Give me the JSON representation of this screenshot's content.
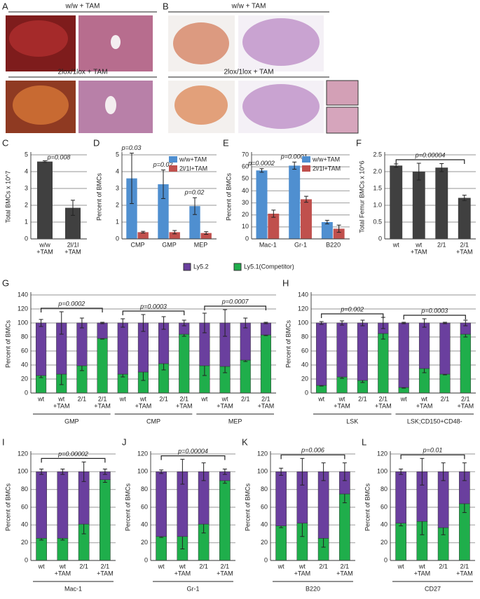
{
  "image_panels": [
    {
      "label": "A",
      "captions": [
        "w/w + TAM",
        "2lox/1lox + TAM"
      ]
    },
    {
      "label": "B",
      "captions": [
        "w/w + TAM",
        "2lox/1lox + TAM"
      ]
    }
  ],
  "shared_legend": [
    {
      "name": "Ly5.2",
      "color": "#6a3f9e"
    },
    {
      "name": "Ly5.1(Competitor)",
      "color": "#1fae4b"
    }
  ],
  "chart_data": [
    {
      "type": "bar",
      "label": "C",
      "ylabel": "Total BMCs x 10^7",
      "categories": [
        [
          "w/w",
          "+TAM"
        ],
        [
          "2l/1l",
          "+TAM"
        ]
      ],
      "values": [
        4.6,
        1.85
      ],
      "errors": [
        0.05,
        0.45
      ],
      "color": "#404040",
      "ylim": [
        0,
        5
      ],
      "yticks": [
        0,
        1,
        2,
        3,
        4,
        5
      ],
      "grid": true,
      "annotation": "p=0.008"
    },
    {
      "type": "grouped_bar",
      "label": "D",
      "ylabel": "Percent of BMCs",
      "categories": [
        [
          "CMP"
        ],
        [
          "GMP"
        ],
        [
          "MEP"
        ]
      ],
      "series": [
        {
          "name": "w/w+TAM",
          "color": "#4f8fd0",
          "values": [
            3.6,
            3.25,
            1.95
          ],
          "errors": [
            1.5,
            0.85,
            0.5
          ]
        },
        {
          "name": "2l/1l+TAM",
          "color": "#c0504d",
          "values": [
            0.4,
            0.4,
            0.35
          ],
          "errors": [
            0.05,
            0.1,
            0.08
          ]
        }
      ],
      "p_values": [
        "p=0.03",
        "p=0.02",
        "p=0.02"
      ],
      "ylim": [
        0,
        5
      ],
      "yticks": [
        0,
        1,
        2,
        3,
        4,
        5
      ],
      "grid": true,
      "legend": "top-right"
    },
    {
      "type": "grouped_bar",
      "label": "E",
      "ylabel": "Percent of BMCs",
      "categories": [
        [
          "Mac-1"
        ],
        [
          "Gr-1"
        ],
        [
          "B220"
        ]
      ],
      "series": [
        {
          "name": "w/w+TAM",
          "color": "#4f8fd0",
          "values": [
            57,
            61,
            14
          ],
          "errors": [
            1.5,
            3,
            1.5
          ]
        },
        {
          "name": "2l/1l+TAM",
          "color": "#c0504d",
          "values": [
            21,
            33,
            8.5
          ],
          "errors": [
            3,
            2.5,
            3
          ]
        }
      ],
      "p_values": [
        "p=0.0002",
        "p=0.0001",
        null
      ],
      "ylim": [
        0,
        70
      ],
      "yticks": [
        0,
        10,
        20,
        30,
        40,
        50,
        60,
        70
      ],
      "grid": true,
      "legend": "top-right"
    },
    {
      "type": "bar",
      "label": "F",
      "ylabel": "Total Femur BMCs x 10^6",
      "categories": [
        [
          "wt"
        ],
        [
          "wt",
          "+TAM"
        ],
        [
          "2/1"
        ],
        [
          "2/1",
          "+TAM"
        ]
      ],
      "values": [
        2.18,
        2.0,
        2.12,
        1.22
      ],
      "errors": [
        0.05,
        0.25,
        0.12,
        0.08
      ],
      "color": "#404040",
      "ylim": [
        0,
        2.5
      ],
      "yticks": [
        0,
        0.5,
        {
          "value": 1,
          "label": "1.0"
        },
        1.5,
        {
          "value": 2,
          "label": "2.0"
        },
        2.5
      ],
      "grid": true,
      "bracket": "p=0.00004"
    },
    {
      "type": "stacked_bar",
      "label": "G",
      "ylabel": "Percent of BMCs",
      "categories": [
        [
          "wt"
        ],
        [
          "wt",
          "+TAM"
        ],
        [
          "2/1"
        ],
        [
          "2/1",
          "+TAM"
        ],
        [
          "wt"
        ],
        [
          "wt",
          "+TAM"
        ],
        [
          "2/1"
        ],
        [
          "2/1",
          "+TAM"
        ],
        [
          "wt"
        ],
        [
          "wt",
          "+TAM"
        ],
        [
          "2/1"
        ],
        [
          "2/1",
          "+TAM"
        ]
      ],
      "series": [
        {
          "color": "#1fae4b",
          "values": [
            25,
            27,
            39,
            78,
            27,
            30,
            42,
            84,
            39,
            38,
            47,
            83
          ],
          "errors": [
            3,
            15,
            7,
            1,
            4,
            12,
            9,
            3,
            14,
            9,
            2,
            1
          ]
        },
        {
          "color": "#6a3f9e",
          "values": [
            75,
            73,
            61,
            22,
            73,
            70,
            58,
            16,
            61,
            62,
            53,
            17
          ],
          "errors": [
            5,
            16,
            7,
            1,
            6,
            12,
            9,
            4,
            14,
            19,
            7,
            1
          ]
        }
      ],
      "groups": [
        {
          "name": "GMP",
          "p": "p=0.0002"
        },
        {
          "name": "CMP",
          "p": "p=0.0003"
        },
        {
          "name": "MEP",
          "p": "p=0.0007"
        }
      ],
      "ylim": [
        0,
        140
      ],
      "yticks": [
        0,
        20,
        40,
        60,
        80,
        100,
        120,
        140
      ],
      "grid": true
    },
    {
      "type": "stacked_bar",
      "label": "H",
      "ylabel": "Percent of BMCs",
      "categories": [
        [
          "wt"
        ],
        [
          "wt",
          "+TAM"
        ],
        [
          "2/1"
        ],
        [
          "2/1",
          "+TAM"
        ],
        [
          "wt"
        ],
        [
          "wt",
          "+TAM"
        ],
        [
          "2/1"
        ],
        [
          "2/1",
          "+TAM"
        ]
      ],
      "series": [
        {
          "color": "#1fae4b",
          "values": [
            11,
            23,
            18,
            85,
            8,
            35,
            27,
            84
          ],
          "errors": [
            1,
            2,
            3,
            8,
            1,
            6,
            1,
            4
          ]
        },
        {
          "color": "#6a3f9e",
          "values": [
            89,
            77,
            82,
            15,
            92,
            65,
            73,
            16
          ],
          "errors": [
            2,
            3,
            4,
            8,
            1,
            6,
            1,
            4
          ]
        }
      ],
      "groups": [
        {
          "name": "LSK",
          "p": "p=0.002"
        },
        {
          "name": "LSK;CD150+CD48-",
          "p": "p=0.0003"
        }
      ],
      "ylim": [
        0,
        140
      ],
      "yticks": [
        0,
        20,
        40,
        60,
        80,
        100,
        120,
        140
      ],
      "grid": true
    },
    {
      "type": "stacked_bar",
      "label": "I",
      "ylabel": "Percent of BMCs",
      "categories": [
        [
          "wt"
        ],
        [
          "wt",
          "+TAM"
        ],
        [
          "2/1"
        ],
        [
          "2/1",
          "+TAM"
        ]
      ],
      "series": [
        {
          "color": "#1fae4b",
          "values": [
            25,
            25,
            41,
            91
          ],
          "errors": [
            2,
            2,
            11,
            3
          ]
        },
        {
          "color": "#6a3f9e",
          "values": [
            75,
            75,
            59,
            9
          ],
          "errors": [
            3,
            3,
            11,
            3
          ]
        }
      ],
      "groups": [
        {
          "name": "Mac-1",
          "p": "p=0.00002"
        }
      ],
      "ylim": [
        0,
        120
      ],
      "yticks": [
        0,
        20,
        40,
        60,
        80,
        100,
        120
      ],
      "grid": true
    },
    {
      "type": "stacked_bar",
      "label": "J",
      "ylabel": "Percent of BMCs",
      "categories": [
        [
          "wt"
        ],
        [
          "wt",
          "+TAM"
        ],
        [
          "2/1"
        ],
        [
          "2/1",
          "+TAM"
        ]
      ],
      "series": [
        {
          "color": "#1fae4b",
          "values": [
            27,
            27,
            41,
            90
          ],
          "errors": [
            1,
            14,
            10,
            3
          ]
        },
        {
          "color": "#6a3f9e",
          "values": [
            73,
            73,
            59,
            10
          ],
          "errors": [
            2,
            14,
            10,
            3
          ]
        }
      ],
      "groups": [
        {
          "name": "Gr-1",
          "p": "p=0.00004"
        }
      ],
      "ylim": [
        0,
        120
      ],
      "yticks": [
        0,
        20,
        40,
        60,
        80,
        100,
        120
      ],
      "grid": true
    },
    {
      "type": "stacked_bar",
      "label": "K",
      "ylabel": "Percent of BMCs",
      "categories": [
        [
          "wt"
        ],
        [
          "wt",
          "+TAM"
        ],
        [
          "2/1"
        ],
        [
          "2/1",
          "+TAM"
        ]
      ],
      "series": [
        {
          "color": "#1fae4b",
          "values": [
            39,
            42,
            25,
            75
          ],
          "errors": [
            2,
            15,
            10,
            10
          ]
        },
        {
          "color": "#6a3f9e",
          "values": [
            61,
            58,
            75,
            25
          ],
          "errors": [
            4,
            15,
            10,
            10
          ]
        }
      ],
      "groups": [
        {
          "name": "B220",
          "p": "p=0.006"
        }
      ],
      "ylim": [
        0,
        120
      ],
      "yticks": [
        0,
        20,
        40,
        60,
        80,
        100,
        120
      ],
      "grid": true
    },
    {
      "type": "stacked_bar",
      "label": "L",
      "ylabel": "Percent of BMCs",
      "categories": [
        [
          "wt"
        ],
        [
          "wt",
          "+TAM"
        ],
        [
          "2/1"
        ],
        [
          "2/1",
          "+TAM"
        ]
      ],
      "series": [
        {
          "color": "#1fae4b",
          "values": [
            42,
            44,
            37,
            64
          ],
          "errors": [
            3,
            15,
            8,
            10
          ]
        },
        {
          "color": "#6a3f9e",
          "values": [
            58,
            56,
            63,
            36
          ],
          "errors": [
            3,
            15,
            10,
            10
          ]
        }
      ],
      "groups": [
        {
          "name": "CD27",
          "p": "p=0.01"
        }
      ],
      "ylim": [
        0,
        120
      ],
      "yticks": [
        0,
        20,
        40,
        60,
        80,
        100,
        120
      ],
      "grid": true
    }
  ]
}
